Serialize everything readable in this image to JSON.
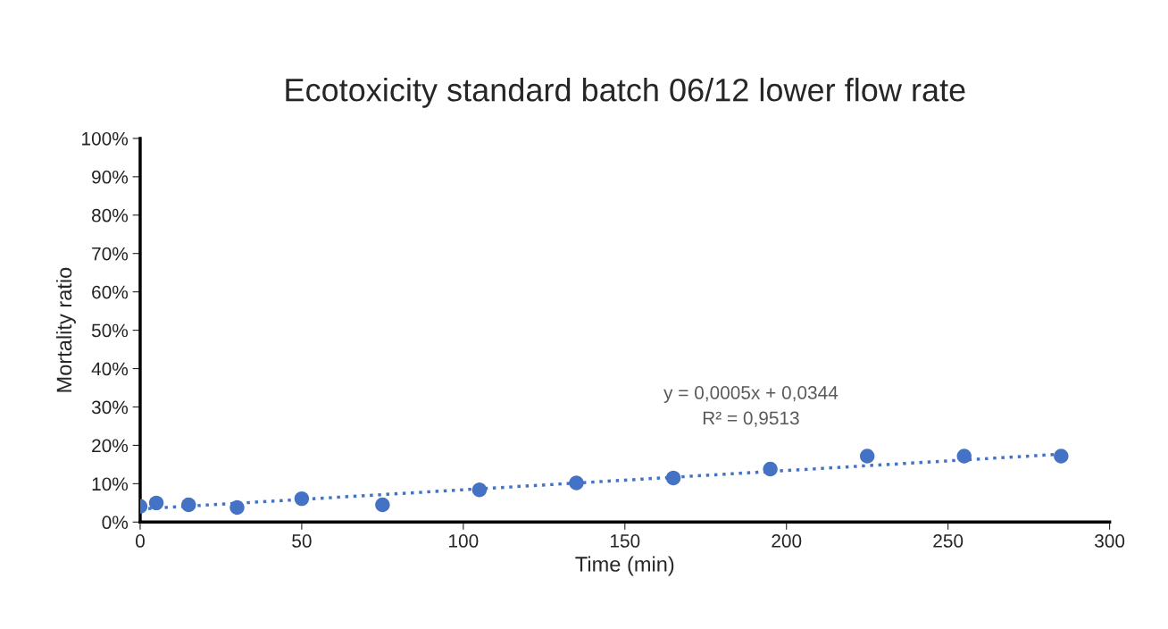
{
  "chart_data": {
    "type": "scatter",
    "title": "Ecotoxicity standard batch 06/12 lower flow rate",
    "xlabel": "Time (min)",
    "ylabel": "Mortality ratio",
    "series": [
      {
        "color": "#4472c4",
        "marker": "circle",
        "x": [
          0,
          5,
          15,
          30,
          50,
          75,
          105,
          135,
          165,
          195,
          225,
          255,
          285
        ],
        "values": [
          0.041,
          0.05,
          0.045,
          0.038,
          0.061,
          0.045,
          0.084,
          0.102,
          0.115,
          0.138,
          0.172,
          0.172,
          0.172
        ]
      },
      {
        "type": "line",
        "color": "#4472c4",
        "line_style": "dotted",
        "marker": "none",
        "x": [
          0,
          285
        ],
        "values": [
          0.034,
          0.177
        ]
      }
    ],
    "annotations": [
      "y = 0,0005x + 0,0344\nR² = 0,9513"
    ],
    "xlim": [
      0,
      300
    ],
    "xticks": [
      0,
      50,
      100,
      150,
      200,
      250,
      300
    ],
    "ylim": [
      0,
      1
    ],
    "yticks": [
      {
        "value": 0,
        "label": "0%"
      },
      {
        "value": 0.1,
        "label": "10%"
      },
      {
        "value": 0.2,
        "label": "20%"
      },
      {
        "value": 0.3,
        "label": "30%"
      },
      {
        "value": 0.4,
        "label": "40%"
      },
      {
        "value": 0.5,
        "label": "50%"
      },
      {
        "value": 0.6,
        "label": "60%"
      },
      {
        "value": 0.7,
        "label": "70%"
      },
      {
        "value": 0.8,
        "label": "80%"
      },
      {
        "value": 0.9,
        "label": "90%"
      },
      {
        "value": 1,
        "label": "100%"
      }
    ],
    "grid": false,
    "legend": false
  }
}
